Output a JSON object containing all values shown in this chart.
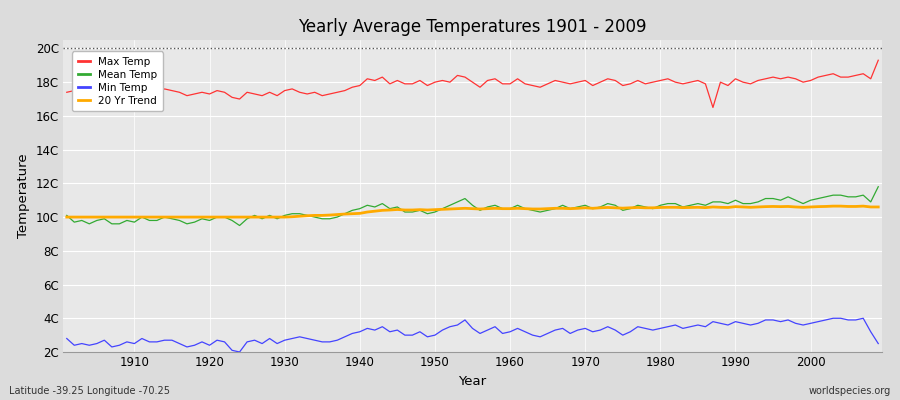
{
  "title": "Yearly Average Temperatures 1901 - 2009",
  "xlabel": "Year",
  "ylabel": "Temperature",
  "bottom_left": "Latitude -39.25 Longitude -70.25",
  "bottom_right": "worldspecies.org",
  "years": [
    1901,
    1902,
    1903,
    1904,
    1905,
    1906,
    1907,
    1908,
    1909,
    1910,
    1911,
    1912,
    1913,
    1914,
    1915,
    1916,
    1917,
    1918,
    1919,
    1920,
    1921,
    1922,
    1923,
    1924,
    1925,
    1926,
    1927,
    1928,
    1929,
    1930,
    1931,
    1932,
    1933,
    1934,
    1935,
    1936,
    1937,
    1938,
    1939,
    1940,
    1941,
    1942,
    1943,
    1944,
    1945,
    1946,
    1947,
    1948,
    1949,
    1950,
    1951,
    1952,
    1953,
    1954,
    1955,
    1956,
    1957,
    1958,
    1959,
    1960,
    1961,
    1962,
    1963,
    1964,
    1965,
    1966,
    1967,
    1968,
    1969,
    1970,
    1971,
    1972,
    1973,
    1974,
    1975,
    1976,
    1977,
    1978,
    1979,
    1980,
    1981,
    1982,
    1983,
    1984,
    1985,
    1986,
    1987,
    1988,
    1989,
    1990,
    1991,
    1992,
    1993,
    1994,
    1995,
    1996,
    1997,
    1998,
    1999,
    2000,
    2001,
    2002,
    2003,
    2004,
    2005,
    2006,
    2007,
    2008,
    2009
  ],
  "max_temp": [
    17.4,
    17.5,
    17.3,
    17.5,
    17.4,
    17.6,
    17.3,
    17.4,
    17.5,
    17.3,
    17.6,
    17.5,
    17.3,
    17.6,
    17.5,
    17.4,
    17.2,
    17.3,
    17.4,
    17.3,
    17.5,
    17.4,
    17.1,
    17.0,
    17.4,
    17.3,
    17.2,
    17.4,
    17.2,
    17.5,
    17.6,
    17.4,
    17.3,
    17.4,
    17.2,
    17.3,
    17.4,
    17.5,
    17.7,
    17.8,
    18.2,
    18.1,
    18.3,
    17.9,
    18.1,
    17.9,
    17.9,
    18.1,
    17.8,
    18.0,
    18.1,
    18.0,
    18.4,
    18.3,
    18.0,
    17.7,
    18.1,
    18.2,
    17.9,
    17.9,
    18.2,
    17.9,
    17.8,
    17.7,
    17.9,
    18.1,
    18.0,
    17.9,
    18.0,
    18.1,
    17.8,
    18.0,
    18.2,
    18.1,
    17.8,
    17.9,
    18.1,
    17.9,
    18.0,
    18.1,
    18.2,
    18.0,
    17.9,
    18.0,
    18.1,
    17.9,
    16.5,
    18.0,
    17.8,
    18.2,
    18.0,
    17.9,
    18.1,
    18.2,
    18.3,
    18.2,
    18.3,
    18.2,
    18.0,
    18.1,
    18.3,
    18.4,
    18.5,
    18.3,
    18.3,
    18.4,
    18.5,
    18.2,
    19.3
  ],
  "mean_temp": [
    10.1,
    9.7,
    9.8,
    9.6,
    9.8,
    9.9,
    9.6,
    9.6,
    9.8,
    9.7,
    10.0,
    9.8,
    9.8,
    10.0,
    9.9,
    9.8,
    9.6,
    9.7,
    9.9,
    9.8,
    10.0,
    10.0,
    9.8,
    9.5,
    9.9,
    10.1,
    9.9,
    10.1,
    9.9,
    10.1,
    10.2,
    10.2,
    10.1,
    10.0,
    9.9,
    9.9,
    10.0,
    10.2,
    10.4,
    10.5,
    10.7,
    10.6,
    10.8,
    10.5,
    10.6,
    10.3,
    10.3,
    10.4,
    10.2,
    10.3,
    10.5,
    10.7,
    10.9,
    11.1,
    10.7,
    10.4,
    10.6,
    10.7,
    10.5,
    10.5,
    10.7,
    10.5,
    10.4,
    10.3,
    10.4,
    10.5,
    10.7,
    10.5,
    10.6,
    10.7,
    10.5,
    10.6,
    10.8,
    10.7,
    10.4,
    10.5,
    10.7,
    10.6,
    10.5,
    10.7,
    10.8,
    10.8,
    10.6,
    10.7,
    10.8,
    10.7,
    10.9,
    10.9,
    10.8,
    11.0,
    10.8,
    10.8,
    10.9,
    11.1,
    11.1,
    11.0,
    11.2,
    11.0,
    10.8,
    11.0,
    11.1,
    11.2,
    11.3,
    11.3,
    11.2,
    11.2,
    11.3,
    10.9,
    11.8
  ],
  "min_temp": [
    2.8,
    2.4,
    2.5,
    2.4,
    2.5,
    2.7,
    2.3,
    2.4,
    2.6,
    2.5,
    2.8,
    2.6,
    2.6,
    2.7,
    2.7,
    2.5,
    2.3,
    2.4,
    2.6,
    2.4,
    2.7,
    2.6,
    2.1,
    2.0,
    2.6,
    2.7,
    2.5,
    2.8,
    2.5,
    2.7,
    2.8,
    2.9,
    2.8,
    2.7,
    2.6,
    2.6,
    2.7,
    2.9,
    3.1,
    3.2,
    3.4,
    3.3,
    3.5,
    3.2,
    3.3,
    3.0,
    3.0,
    3.2,
    2.9,
    3.0,
    3.3,
    3.5,
    3.6,
    3.9,
    3.4,
    3.1,
    3.3,
    3.5,
    3.1,
    3.2,
    3.4,
    3.2,
    3.0,
    2.9,
    3.1,
    3.3,
    3.4,
    3.1,
    3.3,
    3.4,
    3.2,
    3.3,
    3.5,
    3.3,
    3.0,
    3.2,
    3.5,
    3.4,
    3.3,
    3.4,
    3.5,
    3.6,
    3.4,
    3.5,
    3.6,
    3.5,
    3.8,
    3.7,
    3.6,
    3.8,
    3.7,
    3.6,
    3.7,
    3.9,
    3.9,
    3.8,
    3.9,
    3.7,
    3.6,
    3.7,
    3.8,
    3.9,
    4.0,
    4.0,
    3.9,
    3.9,
    4.0,
    3.2,
    2.5
  ],
  "trend": [
    10.0,
    10.0,
    10.0,
    10.0,
    10.0,
    10.0,
    10.0,
    10.0,
    10.0,
    10.0,
    10.0,
    10.0,
    10.0,
    10.0,
    10.0,
    10.0,
    10.0,
    10.0,
    10.0,
    10.0,
    10.0,
    10.0,
    10.0,
    10.0,
    10.0,
    10.0,
    10.0,
    10.0,
    10.0,
    10.0,
    10.02,
    10.05,
    10.08,
    10.1,
    10.1,
    10.12,
    10.15,
    10.18,
    10.2,
    10.22,
    10.3,
    10.35,
    10.4,
    10.42,
    10.45,
    10.42,
    10.42,
    10.44,
    10.42,
    10.44,
    10.46,
    10.48,
    10.5,
    10.52,
    10.5,
    10.48,
    10.5,
    10.52,
    10.5,
    10.5,
    10.52,
    10.5,
    10.48,
    10.48,
    10.5,
    10.52,
    10.52,
    10.5,
    10.52,
    10.55,
    10.52,
    10.55,
    10.57,
    10.55,
    10.53,
    10.55,
    10.57,
    10.55,
    10.55,
    10.57,
    10.58,
    10.58,
    10.56,
    10.57,
    10.58,
    10.56,
    10.6,
    10.58,
    10.57,
    10.62,
    10.6,
    10.58,
    10.6,
    10.62,
    10.63,
    10.62,
    10.63,
    10.6,
    10.58,
    10.6,
    10.62,
    10.63,
    10.65,
    10.65,
    10.63,
    10.63,
    10.65,
    10.6,
    10.6
  ],
  "ylim": [
    2.0,
    20.5
  ],
  "yticks": [
    2,
    4,
    6,
    8,
    10,
    12,
    14,
    16,
    18,
    20
  ],
  "ytick_labels": [
    "2C",
    "4C",
    "6C",
    "8C",
    "10C",
    "12C",
    "14C",
    "16C",
    "18C",
    "20C"
  ],
  "xticks": [
    1910,
    1920,
    1930,
    1940,
    1950,
    1960,
    1970,
    1980,
    1990,
    2000
  ],
  "max_color": "#ff3333",
  "mean_color": "#33aa33",
  "min_color": "#4444ff",
  "trend_color": "#ffaa00",
  "bg_color": "#dcdcdc",
  "plot_bg": "#e8e8e8",
  "grid_color": "#ffffff",
  "dashed_line_y": 20.0,
  "dashed_line_color": "#555555"
}
